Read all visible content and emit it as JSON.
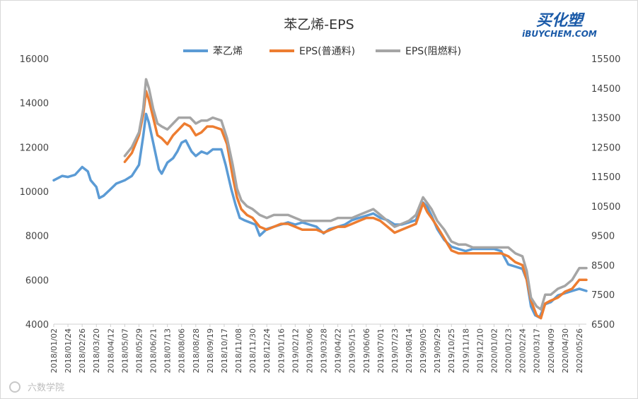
{
  "chart_data": {
    "type": "line",
    "title": "苯乙烯-EPS",
    "xlabel": "",
    "ylabel_left": "",
    "ylabel_right": "",
    "legend_position": "top",
    "grid": false,
    "x_tick_labels": [
      "2018/01/02",
      "2018/01/24",
      "2018/02/26",
      "2018/03/20",
      "2018/04/12",
      "2018/05/07",
      "2018/05/29",
      "2018/06/21",
      "2018/07/13",
      "2018/08/06",
      "2018/08/28",
      "2018/09/19",
      "2018/10/17",
      "2018/11/08",
      "2018/11/30",
      "2018/12/24",
      "2019/01/16",
      "2019/02/12",
      "2019/03/06",
      "2019/03/28",
      "2019/04/22",
      "2019/05/15",
      "2019/06/06",
      "2019/07/01",
      "2019/07/23",
      "2019/08/14",
      "2019/09/05",
      "2019/09/29",
      "2019/10/25",
      "2019/11/18",
      "2019/12/10",
      "2020/01/02",
      "2020/01/23",
      "2020/02/24",
      "2020/03/17",
      "2020/04/09",
      "2020/04/30",
      "2020/05/26"
    ],
    "left_axis": {
      "ylim": [
        4000,
        16000
      ],
      "ticks": [
        4000,
        6000,
        8000,
        10000,
        12000,
        14000,
        16000
      ]
    },
    "right_axis": {
      "ylim": [
        6500,
        15500
      ],
      "ticks": [
        6500,
        7500,
        8500,
        9500,
        10500,
        11500,
        12500,
        13500,
        14500,
        15500
      ]
    },
    "series": [
      {
        "name": "苯乙烯",
        "axis": "left",
        "color": "#5b9bd5",
        "points": [
          [
            0,
            10500
          ],
          [
            0.6,
            10700
          ],
          [
            1,
            10650
          ],
          [
            1.5,
            10750
          ],
          [
            2,
            11100
          ],
          [
            2.4,
            10900
          ],
          [
            2.6,
            10500
          ],
          [
            3,
            10200
          ],
          [
            3.2,
            9700
          ],
          [
            3.5,
            9800
          ],
          [
            4,
            10100
          ],
          [
            4.4,
            10350
          ],
          [
            5,
            10500
          ],
          [
            5.5,
            10700
          ],
          [
            6,
            11200
          ],
          [
            6.3,
            12500
          ],
          [
            6.5,
            13500
          ],
          [
            6.7,
            13100
          ],
          [
            7,
            12200
          ],
          [
            7.2,
            11600
          ],
          [
            7.4,
            11000
          ],
          [
            7.6,
            10800
          ],
          [
            8,
            11300
          ],
          [
            8.4,
            11500
          ],
          [
            8.7,
            11800
          ],
          [
            9,
            12200
          ],
          [
            9.3,
            12300
          ],
          [
            9.7,
            11800
          ],
          [
            10,
            11600
          ],
          [
            10.4,
            11800
          ],
          [
            10.8,
            11700
          ],
          [
            11.2,
            11900
          ],
          [
            11.8,
            11900
          ],
          [
            12.1,
            11200
          ],
          [
            12.5,
            10100
          ],
          [
            12.8,
            9400
          ],
          [
            13.1,
            8800
          ],
          [
            13.4,
            8700
          ],
          [
            13.8,
            8600
          ],
          [
            14.2,
            8500
          ],
          [
            14.5,
            8000
          ],
          [
            15,
            8300
          ],
          [
            15.5,
            8400
          ],
          [
            16,
            8500
          ],
          [
            16.5,
            8600
          ],
          [
            17,
            8500
          ],
          [
            17.5,
            8600
          ],
          [
            18,
            8500
          ],
          [
            18.5,
            8400
          ],
          [
            19,
            8100
          ],
          [
            19.4,
            8300
          ],
          [
            20,
            8400
          ],
          [
            20.5,
            8500
          ],
          [
            21,
            8700
          ],
          [
            21.5,
            8800
          ],
          [
            22,
            8900
          ],
          [
            22.5,
            9000
          ],
          [
            23,
            8800
          ],
          [
            23.5,
            8700
          ],
          [
            24,
            8500
          ],
          [
            24.5,
            8500
          ],
          [
            25,
            8600
          ],
          [
            25.5,
            8700
          ],
          [
            26,
            9500
          ],
          [
            26.3,
            9300
          ],
          [
            26.6,
            8900
          ],
          [
            27,
            8300
          ],
          [
            27.5,
            7800
          ],
          [
            28,
            7500
          ],
          [
            28.5,
            7400
          ],
          [
            29,
            7300
          ],
          [
            29.5,
            7400
          ],
          [
            30,
            7400
          ],
          [
            30.5,
            7400
          ],
          [
            31,
            7400
          ],
          [
            31.5,
            7300
          ],
          [
            32,
            6700
          ],
          [
            32.5,
            6600
          ],
          [
            33,
            6500
          ],
          [
            33.3,
            6000
          ],
          [
            33.6,
            4800
          ],
          [
            33.9,
            4400
          ],
          [
            34.2,
            4300
          ],
          [
            34.6,
            4900
          ],
          [
            35,
            5000
          ],
          [
            35.5,
            5300
          ],
          [
            36,
            5400
          ],
          [
            36.5,
            5500
          ],
          [
            37,
            5600
          ],
          [
            37.5,
            5500
          ]
        ]
      },
      {
        "name": "EPS(普通料)",
        "axis": "right",
        "color": "#ed7d31",
        "points": [
          [
            5,
            12000
          ],
          [
            5.5,
            12300
          ],
          [
            6,
            12900
          ],
          [
            6.3,
            13600
          ],
          [
            6.5,
            14400
          ],
          [
            6.7,
            14100
          ],
          [
            7,
            13500
          ],
          [
            7.3,
            12900
          ],
          [
            7.6,
            12800
          ],
          [
            8,
            12600
          ],
          [
            8.4,
            12900
          ],
          [
            8.8,
            13100
          ],
          [
            9.2,
            13300
          ],
          [
            9.6,
            13200
          ],
          [
            10,
            12900
          ],
          [
            10.4,
            13000
          ],
          [
            10.8,
            13200
          ],
          [
            11.2,
            13200
          ],
          [
            11.8,
            13100
          ],
          [
            12.2,
            12600
          ],
          [
            12.6,
            11500
          ],
          [
            12.9,
            10800
          ],
          [
            13.2,
            10400
          ],
          [
            13.6,
            10200
          ],
          [
            14,
            10100
          ],
          [
            14.5,
            9800
          ],
          [
            15,
            9700
          ],
          [
            15.5,
            9800
          ],
          [
            16,
            9900
          ],
          [
            16.5,
            9900
          ],
          [
            17,
            9800
          ],
          [
            17.5,
            9700
          ],
          [
            18,
            9700
          ],
          [
            18.5,
            9700
          ],
          [
            19,
            9600
          ],
          [
            19.5,
            9700
          ],
          [
            20,
            9800
          ],
          [
            20.5,
            9800
          ],
          [
            21,
            9900
          ],
          [
            21.5,
            10000
          ],
          [
            22,
            10100
          ],
          [
            22.5,
            10100
          ],
          [
            23,
            10000
          ],
          [
            23.5,
            9800
          ],
          [
            24,
            9600
          ],
          [
            24.5,
            9700
          ],
          [
            25,
            9800
          ],
          [
            25.5,
            9900
          ],
          [
            26,
            10600
          ],
          [
            26.3,
            10300
          ],
          [
            26.6,
            10100
          ],
          [
            27,
            9800
          ],
          [
            27.5,
            9400
          ],
          [
            28,
            9000
          ],
          [
            28.5,
            8900
          ],
          [
            29,
            8900
          ],
          [
            29.5,
            8900
          ],
          [
            30,
            8900
          ],
          [
            30.5,
            8900
          ],
          [
            31,
            8900
          ],
          [
            31.5,
            8900
          ],
          [
            32,
            8800
          ],
          [
            32.5,
            8600
          ],
          [
            33,
            8500
          ],
          [
            33.3,
            8000
          ],
          [
            33.6,
            7300
          ],
          [
            34,
            6800
          ],
          [
            34.3,
            6700
          ],
          [
            34.6,
            7200
          ],
          [
            35,
            7300
          ],
          [
            35.5,
            7400
          ],
          [
            36,
            7600
          ],
          [
            36.5,
            7700
          ],
          [
            37,
            8000
          ],
          [
            37.5,
            8000
          ]
        ]
      },
      {
        "name": "EPS(阻燃料)",
        "axis": "right",
        "color": "#a5a5a5",
        "points": [
          [
            5,
            12200
          ],
          [
            5.5,
            12500
          ],
          [
            6,
            13000
          ],
          [
            6.3,
            13800
          ],
          [
            6.5,
            14800
          ],
          [
            6.7,
            14500
          ],
          [
            7,
            13800
          ],
          [
            7.3,
            13300
          ],
          [
            7.6,
            13200
          ],
          [
            8,
            13100
          ],
          [
            8.4,
            13300
          ],
          [
            8.8,
            13500
          ],
          [
            9.2,
            13500
          ],
          [
            9.6,
            13500
          ],
          [
            10,
            13300
          ],
          [
            10.4,
            13400
          ],
          [
            10.8,
            13400
          ],
          [
            11.2,
            13500
          ],
          [
            11.8,
            13400
          ],
          [
            12.2,
            12800
          ],
          [
            12.6,
            11900
          ],
          [
            12.9,
            11100
          ],
          [
            13.2,
            10700
          ],
          [
            13.6,
            10500
          ],
          [
            14,
            10400
          ],
          [
            14.5,
            10200
          ],
          [
            15,
            10100
          ],
          [
            15.5,
            10200
          ],
          [
            16,
            10200
          ],
          [
            16.5,
            10200
          ],
          [
            17,
            10100
          ],
          [
            17.5,
            10000
          ],
          [
            18,
            10000
          ],
          [
            18.5,
            10000
          ],
          [
            19,
            10000
          ],
          [
            19.5,
            10000
          ],
          [
            20,
            10100
          ],
          [
            20.5,
            10100
          ],
          [
            21,
            10100
          ],
          [
            21.5,
            10200
          ],
          [
            22,
            10300
          ],
          [
            22.5,
            10400
          ],
          [
            23,
            10200
          ],
          [
            23.5,
            10000
          ],
          [
            24,
            9800
          ],
          [
            24.5,
            9900
          ],
          [
            25,
            10000
          ],
          [
            25.5,
            10200
          ],
          [
            26,
            10800
          ],
          [
            26.3,
            10600
          ],
          [
            26.6,
            10400
          ],
          [
            27,
            10000
          ],
          [
            27.5,
            9700
          ],
          [
            28,
            9300
          ],
          [
            28.5,
            9200
          ],
          [
            29,
            9200
          ],
          [
            29.5,
            9100
          ],
          [
            30,
            9100
          ],
          [
            30.5,
            9100
          ],
          [
            31,
            9100
          ],
          [
            31.5,
            9100
          ],
          [
            32,
            9100
          ],
          [
            32.5,
            8900
          ],
          [
            33,
            8800
          ],
          [
            33.3,
            8300
          ],
          [
            33.6,
            7400
          ],
          [
            34,
            7100
          ],
          [
            34.3,
            7000
          ],
          [
            34.6,
            7500
          ],
          [
            35,
            7500
          ],
          [
            35.5,
            7700
          ],
          [
            36,
            7800
          ],
          [
            36.5,
            8000
          ],
          [
            37,
            8400
          ],
          [
            37.5,
            8400
          ]
        ]
      }
    ]
  },
  "logo": {
    "cn_text": "买化塑",
    "en_text": "iBUYCHEM.COM"
  },
  "watermark": {
    "text": "六数学院"
  }
}
